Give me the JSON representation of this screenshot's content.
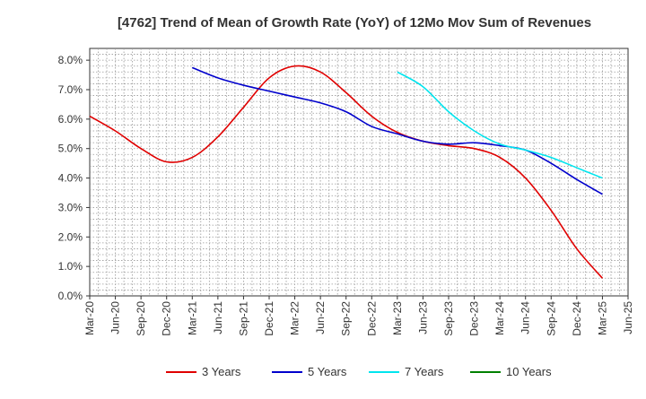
{
  "chart_data": {
    "type": "line",
    "title": "[4762]  Trend of Mean of Growth Rate (YoY) of 12Mo Mov Sum of Revenues",
    "xlabel": "",
    "ylabel": "",
    "ylim": [
      0,
      8.4
    ],
    "y_ticks": [
      0,
      1,
      2,
      3,
      4,
      5,
      6,
      7,
      8
    ],
    "y_tick_labels": [
      "0.0%",
      "1.0%",
      "2.0%",
      "3.0%",
      "4.0%",
      "5.0%",
      "6.0%",
      "7.0%",
      "8.0%"
    ],
    "categories": [
      "Mar-20",
      "Jun-20",
      "Sep-20",
      "Dec-20",
      "Mar-21",
      "Jun-21",
      "Sep-21",
      "Dec-21",
      "Mar-22",
      "Jun-22",
      "Sep-22",
      "Dec-22",
      "Mar-23",
      "Jun-23",
      "Sep-23",
      "Dec-23",
      "Mar-24",
      "Jun-24",
      "Sep-24",
      "Dec-24",
      "Mar-25",
      "Jun-25"
    ],
    "grid": true,
    "legend_position": "bottom",
    "series": [
      {
        "name": "3 Years",
        "color": "#e00000",
        "values": [
          6.1,
          5.6,
          5.0,
          4.55,
          4.7,
          5.4,
          6.4,
          7.4,
          7.8,
          7.6,
          6.9,
          6.1,
          5.55,
          5.25,
          5.1,
          5.0,
          4.7,
          4.0,
          2.9,
          1.6,
          0.6,
          null
        ]
      },
      {
        "name": "5 Years",
        "color": "#0000cc",
        "values": [
          null,
          null,
          null,
          null,
          7.75,
          7.4,
          7.15,
          6.95,
          6.75,
          6.55,
          6.25,
          5.75,
          5.5,
          5.25,
          5.15,
          5.2,
          5.1,
          4.95,
          4.5,
          3.95,
          3.45,
          null
        ]
      },
      {
        "name": "7 Years",
        "color": "#00e5ee",
        "values": [
          null,
          null,
          null,
          null,
          null,
          null,
          null,
          null,
          null,
          null,
          null,
          null,
          7.6,
          7.1,
          6.25,
          5.6,
          5.15,
          4.95,
          4.7,
          4.35,
          4.0,
          null
        ]
      },
      {
        "name": "10 Years",
        "color": "#008000",
        "values": [
          null,
          null,
          null,
          null,
          null,
          null,
          null,
          null,
          null,
          null,
          null,
          null,
          null,
          null,
          null,
          null,
          null,
          null,
          null,
          null,
          null,
          null
        ]
      }
    ]
  }
}
